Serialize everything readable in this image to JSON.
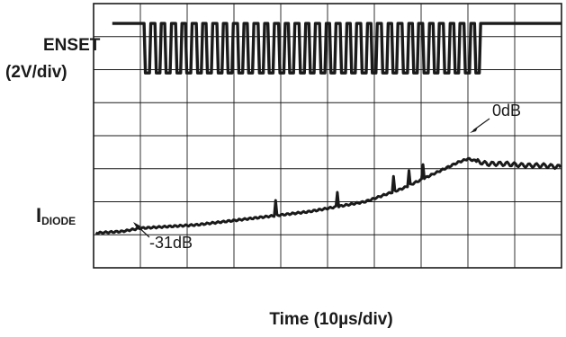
{
  "chart_data": {
    "type": "line",
    "title": "",
    "grid": true,
    "divisions": {
      "x": 10,
      "y": 8
    },
    "xlabel": "Time (10µs/div)",
    "x_range_div": [
      0,
      10
    ],
    "series": [
      {
        "name": "ENSET",
        "scale_label": "(2V/div)",
        "description_values": "logic level toggling between 0 and 2 div",
        "high_div": 7.4,
        "low_div": 5.9,
        "toggle_start_div": 1.05,
        "toggle_end_div": 8.3,
        "toggle_period_div": 0.215
      },
      {
        "name": "I",
        "name_subscript": "DIODE",
        "x_div": [
          0.0,
          0.6,
          1.0,
          1.6,
          2.2,
          2.8,
          3.4,
          4.0,
          4.6,
          5.2,
          5.8,
          6.2,
          6.6,
          6.9,
          7.2,
          7.5,
          7.8,
          8.0,
          8.4,
          8.8,
          9.2,
          9.6,
          10.0
        ],
        "y_div": [
          1.05,
          1.1,
          1.2,
          1.25,
          1.3,
          1.4,
          1.5,
          1.6,
          1.7,
          1.85,
          2.0,
          2.2,
          2.4,
          2.6,
          2.8,
          3.0,
          3.2,
          3.3,
          3.15,
          3.15,
          3.1,
          3.1,
          3.05
        ],
        "spikes_x_div": [
          3.9,
          5.2,
          6.4,
          6.75,
          7.05
        ]
      }
    ],
    "annotations": [
      {
        "text": "0dB",
        "x_div": 8.2,
        "y_div": 3.3
      },
      {
        "text": "-31dB",
        "x_div": 0.55,
        "y_div": 1.05
      }
    ]
  }
}
